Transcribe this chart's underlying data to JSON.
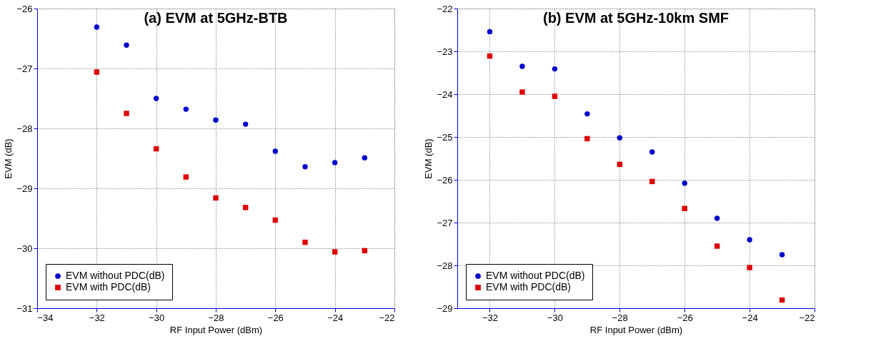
{
  "chart_data": [
    {
      "type": "scatter",
      "title": "(a) EVM at 5GHz-BTB",
      "xlabel": "RF Input Power (dBm)",
      "ylabel": "EVM (dB)",
      "x": [
        -32,
        -31,
        -30,
        -29,
        -28,
        -27,
        -26,
        -25,
        -24,
        -23
      ],
      "series": [
        {
          "name": "EVM without PDC(dB)",
          "color": "#0000cc",
          "marker": "circle",
          "values": [
            -26.31,
            -26.61,
            -27.5,
            -27.68,
            -27.86,
            -27.93,
            -28.38,
            -28.64,
            -28.57,
            -28.49
          ]
        },
        {
          "name": "EVM with PDC(dB)",
          "color": "#dd0000",
          "marker": "square",
          "values": [
            -27.06,
            -27.75,
            -28.34,
            -28.81,
            -29.16,
            -29.32,
            -29.53,
            -29.9,
            -30.06,
            -30.04
          ]
        }
      ],
      "xlim": [
        -34,
        -22
      ],
      "xticks": [
        -34,
        -32,
        -30,
        -28,
        -26,
        -24,
        -22
      ],
      "ylim": [
        -31,
        -26
      ],
      "yticks": [
        -31,
        -30,
        -29,
        -28,
        -27,
        -26
      ],
      "grid": true,
      "legend": "bottom left"
    },
    {
      "type": "scatter",
      "title": "(b) EVM at 5GHz-10km SMF",
      "xlabel": "RF Input Power (dBm)",
      "ylabel": "EVM (dB)",
      "x": [
        -32,
        -31,
        -30,
        -29,
        -28,
        -27,
        -26,
        -25,
        -24,
        -23
      ],
      "series": [
        {
          "name": "EVM without PDC(dB)",
          "color": "#0000cc",
          "marker": "circle",
          "values": [
            -22.54,
            -23.35,
            -23.41,
            -24.46,
            -25.02,
            -25.35,
            -26.08,
            -26.9,
            -27.4,
            -27.75
          ]
        },
        {
          "name": "EVM with PDC(dB)",
          "color": "#dd0000",
          "marker": "square",
          "values": [
            -23.11,
            -23.95,
            -24.05,
            -25.04,
            -25.64,
            -26.04,
            -26.67,
            -27.55,
            -28.05,
            -28.81
          ]
        }
      ],
      "xlim": [
        -33,
        -22
      ],
      "xticks": [
        -32,
        -30,
        -28,
        -26,
        -24,
        -22
      ],
      "ylim": [
        -29,
        -22
      ],
      "yticks": [
        -29,
        -28,
        -27,
        -26,
        -25,
        -24,
        -23,
        -22
      ],
      "grid": true,
      "legend": "bottom left"
    }
  ]
}
